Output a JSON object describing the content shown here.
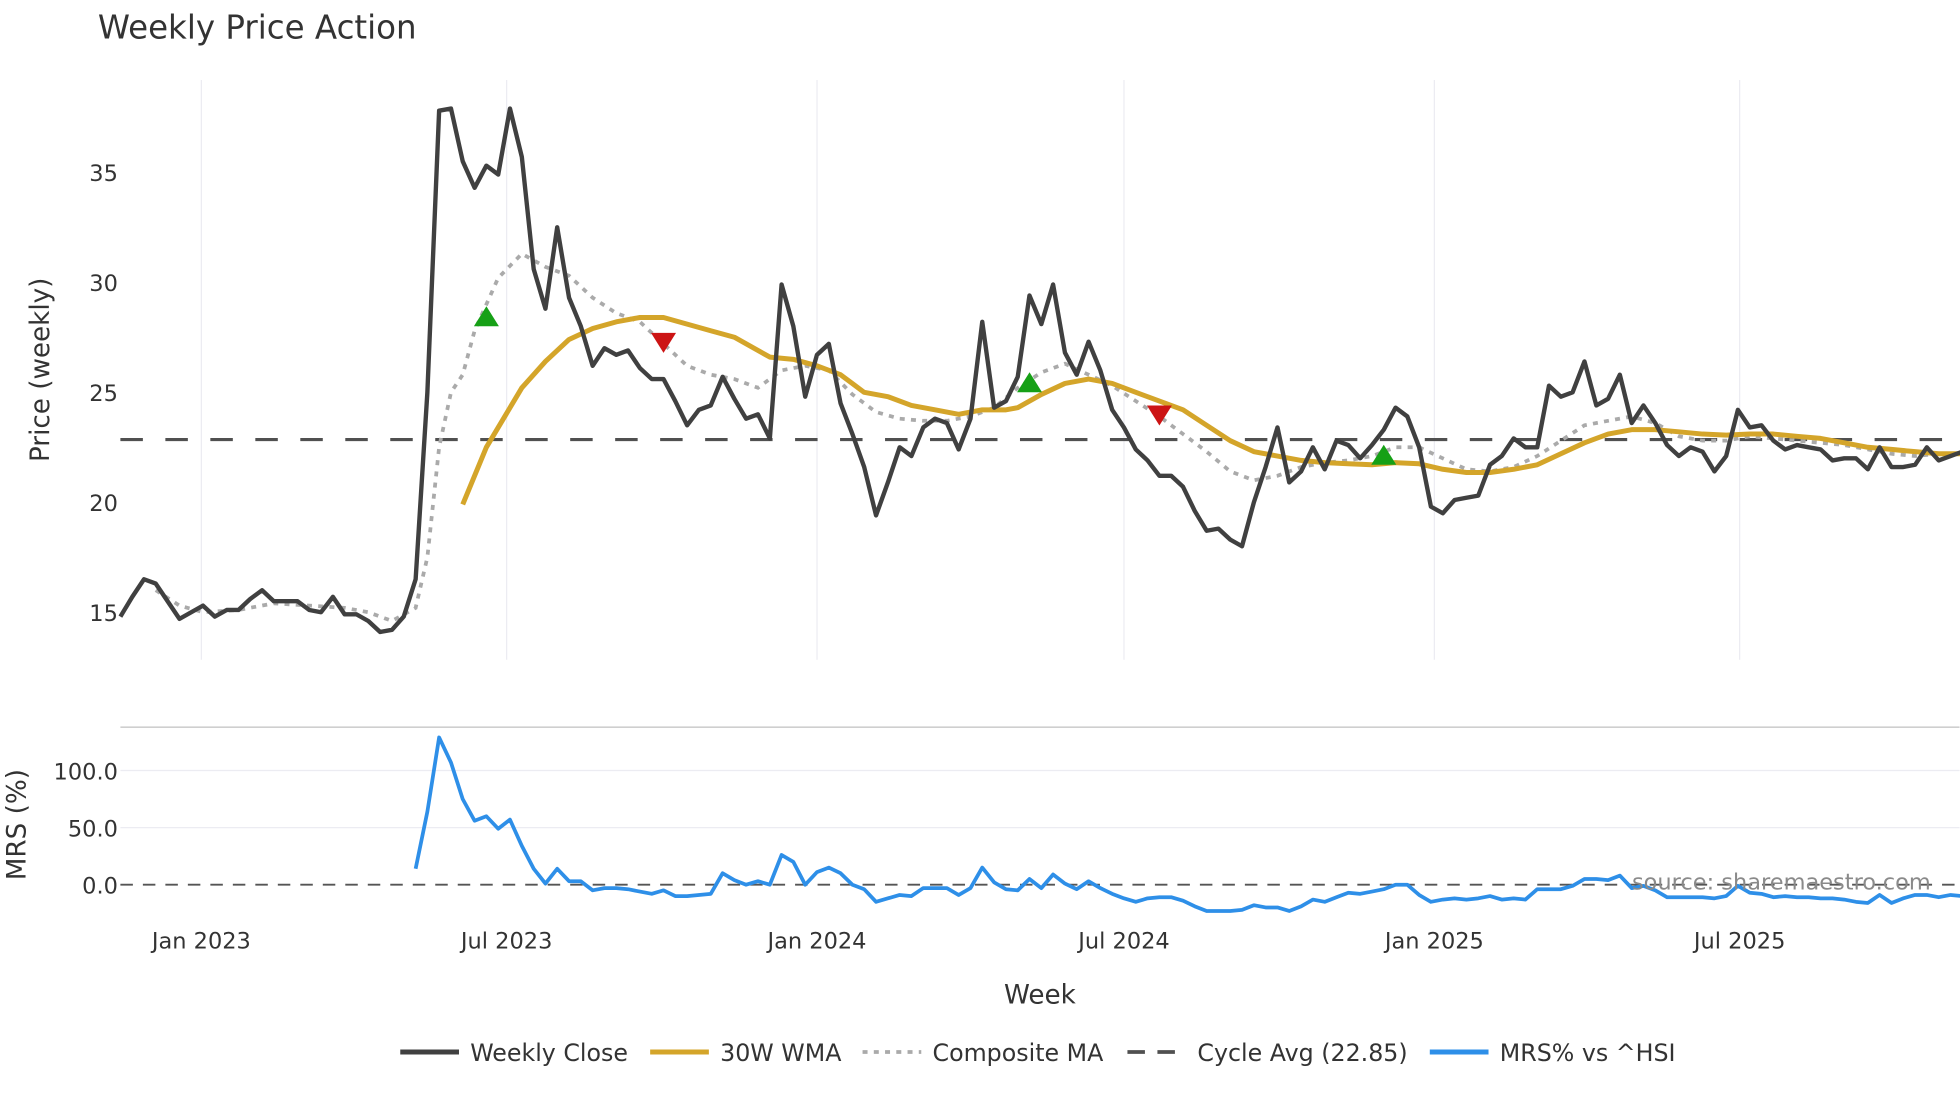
{
  "chart_data": {
    "type": "line",
    "title": "Weekly Price Action",
    "xlabel": "Week",
    "start_week": "2022-11-14",
    "x_ticks": [
      {
        "date": "2023-01-01",
        "label": "Jan 2023"
      },
      {
        "date": "2023-07-01",
        "label": "Jul 2023"
      },
      {
        "date": "2024-01-01",
        "label": "Jan 2024"
      },
      {
        "date": "2024-07-01",
        "label": "Jul 2024"
      },
      {
        "date": "2025-01-01",
        "label": "Jan 2025"
      },
      {
        "date": "2025-07-01",
        "label": "Jul 2025"
      }
    ],
    "price_panel": {
      "ylabel": "Price (weekly)",
      "ylim": [
        12.84,
        39.2
      ],
      "y_ticks": [
        {
          "v": 15,
          "label": "15"
        },
        {
          "v": 20,
          "label": "20"
        },
        {
          "v": 25,
          "label": "25"
        },
        {
          "v": 30,
          "label": "30"
        },
        {
          "v": 35,
          "label": "35"
        }
      ],
      "cycle_avg": 22.85,
      "weekly_close": [
        14.8,
        15.7,
        16.5,
        16.3,
        15.5,
        14.7,
        15.0,
        15.3,
        14.8,
        15.1,
        15.1,
        15.6,
        16.0,
        15.5,
        15.5,
        15.5,
        15.1,
        15.0,
        15.7,
        14.9,
        14.9,
        14.6,
        14.1,
        14.2,
        14.8,
        16.5,
        25.0,
        37.8,
        37.9,
        35.5,
        34.3,
        35.3,
        34.9,
        37.9,
        35.7,
        30.6,
        28.8,
        32.5,
        29.3,
        28.0,
        26.2,
        27.0,
        26.7,
        26.9,
        26.1,
        25.6,
        25.6,
        24.6,
        23.5,
        24.2,
        24.4,
        25.7,
        24.7,
        23.8,
        24.0,
        22.9,
        29.9,
        28.0,
        24.8,
        26.7,
        27.2,
        24.5,
        23.1,
        21.6,
        19.4,
        20.9,
        22.5,
        22.1,
        23.4,
        23.8,
        23.6,
        22.4,
        23.8,
        28.2,
        24.3,
        24.6,
        25.7,
        29.4,
        28.1,
        29.9,
        26.8,
        25.8,
        27.3,
        26.0,
        24.2,
        23.4,
        22.4,
        21.9,
        21.2,
        21.2,
        20.7,
        19.6,
        18.7,
        18.8,
        18.3,
        18.0,
        20.0,
        21.6,
        23.4,
        20.9,
        21.4,
        22.5,
        21.5,
        22.8,
        22.6,
        22.0,
        22.6,
        23.3,
        24.3,
        23.9,
        22.5,
        19.8,
        19.5,
        20.1,
        20.2,
        20.3,
        21.7,
        22.1,
        22.9,
        22.5,
        22.5,
        25.3,
        24.8,
        25.0,
        26.4,
        24.4,
        24.7,
        25.8,
        23.6,
        24.4,
        23.6,
        22.6,
        22.1,
        22.5,
        22.3,
        21.4,
        22.1,
        24.2,
        23.4,
        23.5,
        22.8,
        22.4,
        22.6,
        22.5,
        22.4,
        21.9,
        22.0,
        22.0,
        21.5,
        22.5,
        21.6,
        21.6,
        21.7,
        22.5,
        21.9,
        22.1,
        22.3
      ],
      "wma_30w": [
        [
          29,
          19.9
        ],
        [
          31,
          22.5
        ],
        [
          34,
          25.2
        ],
        [
          36,
          26.4
        ],
        [
          38,
          27.4
        ],
        [
          40,
          27.9
        ],
        [
          42,
          28.2
        ],
        [
          44,
          28.4
        ],
        [
          46,
          28.4
        ],
        [
          48,
          28.1
        ],
        [
          50,
          27.8
        ],
        [
          52,
          27.5
        ],
        [
          54,
          26.9
        ],
        [
          55,
          26.6
        ],
        [
          57,
          26.5
        ],
        [
          59,
          26.2
        ],
        [
          61,
          25.8
        ],
        [
          63,
          25.0
        ],
        [
          65,
          24.8
        ],
        [
          67,
          24.4
        ],
        [
          69,
          24.2
        ],
        [
          71,
          24.0
        ],
        [
          73,
          24.2
        ],
        [
          75,
          24.2
        ],
        [
          76,
          24.3
        ],
        [
          78,
          24.9
        ],
        [
          80,
          25.4
        ],
        [
          82,
          25.6
        ],
        [
          84,
          25.4
        ],
        [
          86,
          25.0
        ],
        [
          88,
          24.6
        ],
        [
          90,
          24.2
        ],
        [
          92,
          23.5
        ],
        [
          94,
          22.8
        ],
        [
          96,
          22.3
        ],
        [
          98,
          22.1
        ],
        [
          100,
          21.9
        ],
        [
          102,
          21.8
        ],
        [
          104,
          21.75
        ],
        [
          106,
          21.7
        ],
        [
          108,
          21.8
        ],
        [
          110,
          21.75
        ],
        [
          112,
          21.5
        ],
        [
          114,
          21.35
        ],
        [
          116,
          21.35
        ],
        [
          118,
          21.5
        ],
        [
          120,
          21.7
        ],
        [
          122,
          22.2
        ],
        [
          124,
          22.7
        ],
        [
          126,
          23.1
        ],
        [
          128,
          23.3
        ],
        [
          130,
          23.3
        ],
        [
          132,
          23.2
        ],
        [
          134,
          23.1
        ],
        [
          136,
          23.05
        ],
        [
          138,
          23.1
        ],
        [
          140,
          23.1
        ],
        [
          142,
          23.0
        ],
        [
          144,
          22.9
        ],
        [
          146,
          22.7
        ],
        [
          148,
          22.5
        ],
        [
          150,
          22.4
        ],
        [
          152,
          22.3
        ],
        [
          154,
          22.2
        ],
        [
          156,
          22.2
        ]
      ],
      "composite_ma": [
        [
          3,
          16.0
        ],
        [
          5,
          15.3
        ],
        [
          7,
          15.0
        ],
        [
          10,
          15.1
        ],
        [
          13,
          15.4
        ],
        [
          16,
          15.3
        ],
        [
          19,
          15.2
        ],
        [
          21,
          15.0
        ],
        [
          23,
          14.6
        ],
        [
          25,
          15.2
        ],
        [
          26,
          17.5
        ],
        [
          27,
          22.5
        ],
        [
          28,
          25.0
        ],
        [
          29,
          25.8
        ],
        [
          30,
          27.8
        ],
        [
          32,
          30.2
        ],
        [
          34,
          31.3
        ],
        [
          36,
          30.7
        ],
        [
          38,
          30.3
        ],
        [
          40,
          29.3
        ],
        [
          42,
          28.6
        ],
        [
          44,
          28.2
        ],
        [
          46,
          27.2
        ],
        [
          48,
          26.2
        ],
        [
          50,
          25.8
        ],
        [
          52,
          25.6
        ],
        [
          54,
          25.2
        ],
        [
          56,
          26.0
        ],
        [
          58,
          26.2
        ],
        [
          60,
          26.0
        ],
        [
          62,
          24.9
        ],
        [
          64,
          24.1
        ],
        [
          66,
          23.8
        ],
        [
          68,
          23.7
        ],
        [
          70,
          23.7
        ],
        [
          72,
          23.9
        ],
        [
          74,
          24.3
        ],
        [
          76,
          25.2
        ],
        [
          78,
          25.9
        ],
        [
          80,
          26.3
        ],
        [
          82,
          25.8
        ],
        [
          84,
          25.3
        ],
        [
          86,
          24.6
        ],
        [
          88,
          23.9
        ],
        [
          90,
          23.1
        ],
        [
          92,
          22.3
        ],
        [
          94,
          21.4
        ],
        [
          96,
          21.0
        ],
        [
          98,
          21.2
        ],
        [
          100,
          21.6
        ],
        [
          102,
          21.8
        ],
        [
          104,
          21.9
        ],
        [
          106,
          22.1
        ],
        [
          108,
          22.5
        ],
        [
          110,
          22.5
        ],
        [
          112,
          22.0
        ],
        [
          114,
          21.5
        ],
        [
          116,
          21.4
        ],
        [
          118,
          21.6
        ],
        [
          120,
          22.1
        ],
        [
          122,
          22.8
        ],
        [
          124,
          23.5
        ],
        [
          126,
          23.7
        ],
        [
          128,
          23.9
        ],
        [
          130,
          23.6
        ],
        [
          132,
          23.0
        ],
        [
          134,
          22.8
        ],
        [
          136,
          22.8
        ],
        [
          138,
          23.0
        ],
        [
          140,
          22.9
        ],
        [
          142,
          22.8
        ],
        [
          144,
          22.7
        ],
        [
          146,
          22.6
        ],
        [
          148,
          22.4
        ],
        [
          150,
          22.2
        ],
        [
          152,
          22.1
        ],
        [
          154,
          22.2
        ],
        [
          156,
          22.2
        ]
      ],
      "signals": [
        {
          "week": 31,
          "value": 28.4,
          "type": "buy"
        },
        {
          "week": 46,
          "value": 27.3,
          "type": "sell"
        },
        {
          "week": 77,
          "value": 25.4,
          "type": "buy"
        },
        {
          "week": 88,
          "value": 24.0,
          "type": "sell"
        },
        {
          "week": 107,
          "value": 22.1,
          "type": "buy"
        }
      ]
    },
    "mrs_panel": {
      "ylabel": "MRS (%)",
      "ylim": [
        -24,
        138
      ],
      "y_ticks": [
        {
          "v": 0,
          "label": "0.0"
        },
        {
          "v": 50,
          "label": "50.0"
        },
        {
          "v": 100,
          "label": "100.0"
        }
      ],
      "start_index": 25,
      "values": [
        14,
        64,
        129,
        107,
        75,
        56,
        60,
        49,
        57,
        34,
        14,
        1,
        14,
        3,
        3,
        -5,
        -3,
        -3,
        -4,
        -6,
        -8,
        -5,
        -10,
        -10,
        -9,
        -8,
        10,
        4,
        0,
        3,
        0,
        26,
        20,
        0,
        11,
        15,
        10,
        0,
        -4,
        -15,
        -12,
        -9,
        -10,
        -3,
        -3,
        -3,
        -9,
        -3,
        15,
        2,
        -4,
        -5,
        5,
        -3,
        9,
        1,
        -4,
        3,
        -3,
        -8,
        -12,
        -15,
        -12,
        -11,
        -11,
        -14,
        -19,
        -23,
        -23,
        -23,
        -22,
        -18,
        -20,
        -20,
        -23,
        -19,
        -13,
        -15,
        -11,
        -7,
        -8,
        -6,
        -4,
        0,
        0,
        -9,
        -15,
        -13,
        -12,
        -13,
        -12,
        -10,
        -13,
        -12,
        -13,
        -4,
        -4,
        -4,
        -1,
        5,
        5,
        4,
        8,
        -3,
        -1,
        -5,
        -11,
        -11,
        -11,
        -11,
        -12,
        -10,
        -1,
        -7,
        -8,
        -11,
        -10,
        -11,
        -11,
        -12,
        -12,
        -13,
        -15,
        -16,
        -9,
        -16,
        -12,
        -9,
        -9,
        -11,
        -9,
        -10
      ]
    },
    "legend": {
      "placement": "bottom-center",
      "items": [
        {
          "label": "Weekly Close",
          "color": "#404040",
          "style": "solid"
        },
        {
          "label": "30W WMA",
          "color": "#D4A52A",
          "style": "solid"
        },
        {
          "label": "Composite MA",
          "color": "#AAAAAA",
          "style": "dotted"
        },
        {
          "label": "Cycle Avg (22.85)",
          "color": "#505050",
          "style": "dashed"
        },
        {
          "label": "MRS% vs ^HSI",
          "color": "#2E8FE8",
          "style": "solid"
        }
      ]
    },
    "watermark": "source: sharemaestro.com",
    "colors": {
      "buy": "#16A016",
      "sell": "#CC1414",
      "grid": "#ECECF2"
    }
  }
}
